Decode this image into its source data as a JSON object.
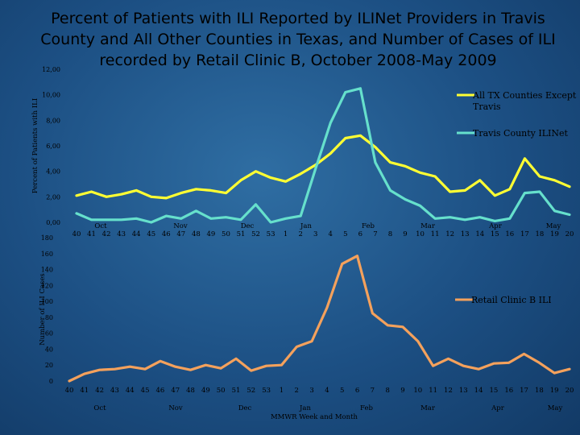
{
  "title": "Percent of Patients with ILI Reported by ILINet Providers in Travis County and All Other Counties in Texas, and Number of Cases of ILI recorded by Retail Clinic B, October 2008-May 2009",
  "chart_data": [
    {
      "type": "line",
      "ylabel": "Percent of Patients with ILI",
      "ylim": [
        0,
        12
      ],
      "yticks": [
        "0,00",
        "2,00",
        "4,00",
        "6,00",
        "8,00",
        "10,00",
        "12,00"
      ],
      "x": [
        "40",
        "41",
        "42",
        "43",
        "44",
        "45",
        "46",
        "47",
        "48",
        "49",
        "50",
        "51",
        "52",
        "53",
        "1",
        "2",
        "3",
        "4",
        "5",
        "6",
        "7",
        "8",
        "9",
        "10",
        "11",
        "12",
        "13",
        "14",
        "15",
        "16",
        "17",
        "18",
        "19",
        "20"
      ],
      "month_labels": [
        "Oct",
        "Nov",
        "Dec",
        "Jan",
        "Feb",
        "Mar",
        "Apr",
        "May"
      ],
      "legend_position": "right",
      "series": [
        {
          "name": "All TX Counties Except Travis",
          "color": "#ffff33",
          "values": [
            2.1,
            2.4,
            2.0,
            2.2,
            2.5,
            2.0,
            1.9,
            2.3,
            2.6,
            2.5,
            2.3,
            3.3,
            4.0,
            3.5,
            3.2,
            3.8,
            4.5,
            5.4,
            6.6,
            6.8,
            5.9,
            4.7,
            4.4,
            3.9,
            3.6,
            2.4,
            2.5,
            3.3,
            2.1,
            2.6,
            5.0,
            3.6,
            3.3,
            2.8
          ]
        },
        {
          "name": "Travis County ILINet",
          "color": "#66e0cc",
          "values": [
            0.7,
            0.2,
            0.2,
            0.2,
            0.3,
            0.0,
            0.5,
            0.3,
            0.9,
            0.3,
            0.4,
            0.2,
            1.4,
            0.0,
            0.3,
            0.5,
            4.2,
            7.8,
            10.2,
            10.5,
            4.7,
            2.5,
            1.8,
            1.3,
            0.3,
            0.4,
            0.2,
            0.4,
            0.1,
            0.3,
            2.3,
            2.4,
            0.9,
            0.6
          ]
        }
      ]
    },
    {
      "type": "line",
      "ylabel": "Number of ILI Cases",
      "xlabel": "MMWR Week and Month",
      "ylim": [
        0,
        180
      ],
      "yticks": [
        "0",
        "20",
        "40",
        "60",
        "80",
        "100",
        "120",
        "140",
        "160",
        "180"
      ],
      "x": [
        "40",
        "41",
        "42",
        "43",
        "44",
        "45",
        "46",
        "47",
        "48",
        "49",
        "50",
        "51",
        "52",
        "53",
        "1",
        "2",
        "3",
        "4",
        "5",
        "6",
        "7",
        "8",
        "9",
        "10",
        "11",
        "12",
        "13",
        "14",
        "15",
        "16",
        "17",
        "18",
        "19",
        "20"
      ],
      "month_labels": [
        "Oct",
        "Nov",
        "Dec",
        "Jan",
        "Feb",
        "Mar",
        "Apr",
        "May"
      ],
      "legend_position": "right",
      "series": [
        {
          "name": "Retail Clinic B ILI",
          "color": "#f4a15c",
          "values": [
            0,
            9,
            14,
            15,
            18,
            15,
            25,
            18,
            14,
            20,
            16,
            28,
            13,
            19,
            20,
            43,
            50,
            92,
            147,
            157,
            85,
            70,
            68,
            50,
            19,
            28,
            19,
            15,
            22,
            23,
            34,
            23,
            10,
            15
          ]
        }
      ]
    }
  ]
}
